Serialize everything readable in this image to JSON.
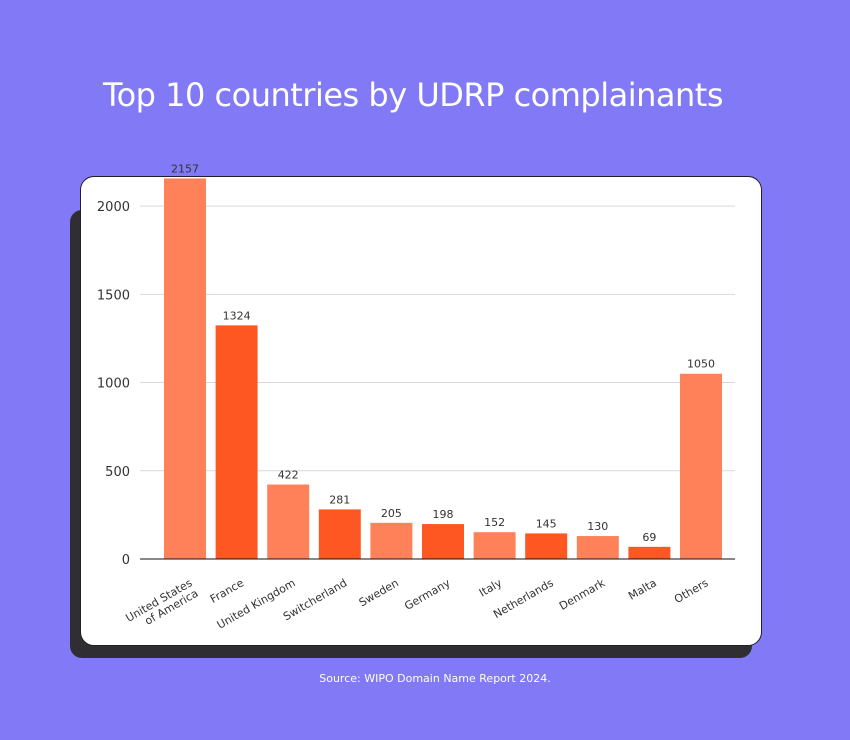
{
  "title": "Top 10 countries by UDRP complainants",
  "source": "Source: WIPO Domain Name Report 2024.",
  "colors": {
    "background": "#8179f5",
    "bar_light": "#ff8159",
    "bar_dark": "#ff5722"
  },
  "chart_data": {
    "type": "bar",
    "title": "Top 10 countries by UDRP complainants",
    "xlabel": "",
    "ylabel": "",
    "ylim": [
      0,
      2250
    ],
    "yticks": [
      0,
      500,
      1000,
      1500,
      2000
    ],
    "grid": true,
    "categories": [
      [
        "United States",
        "of America"
      ],
      [
        "France"
      ],
      [
        "United Kingdom"
      ],
      [
        "Switcherland"
      ],
      [
        "Sweden"
      ],
      [
        "Germany"
      ],
      [
        "Italy"
      ],
      [
        "Netherlands"
      ],
      [
        "Denmark"
      ],
      [
        "Malta"
      ],
      [
        "Others"
      ]
    ],
    "values": [
      2157,
      1324,
      422,
      281,
      205,
      198,
      152,
      145,
      130,
      69,
      1050
    ]
  }
}
